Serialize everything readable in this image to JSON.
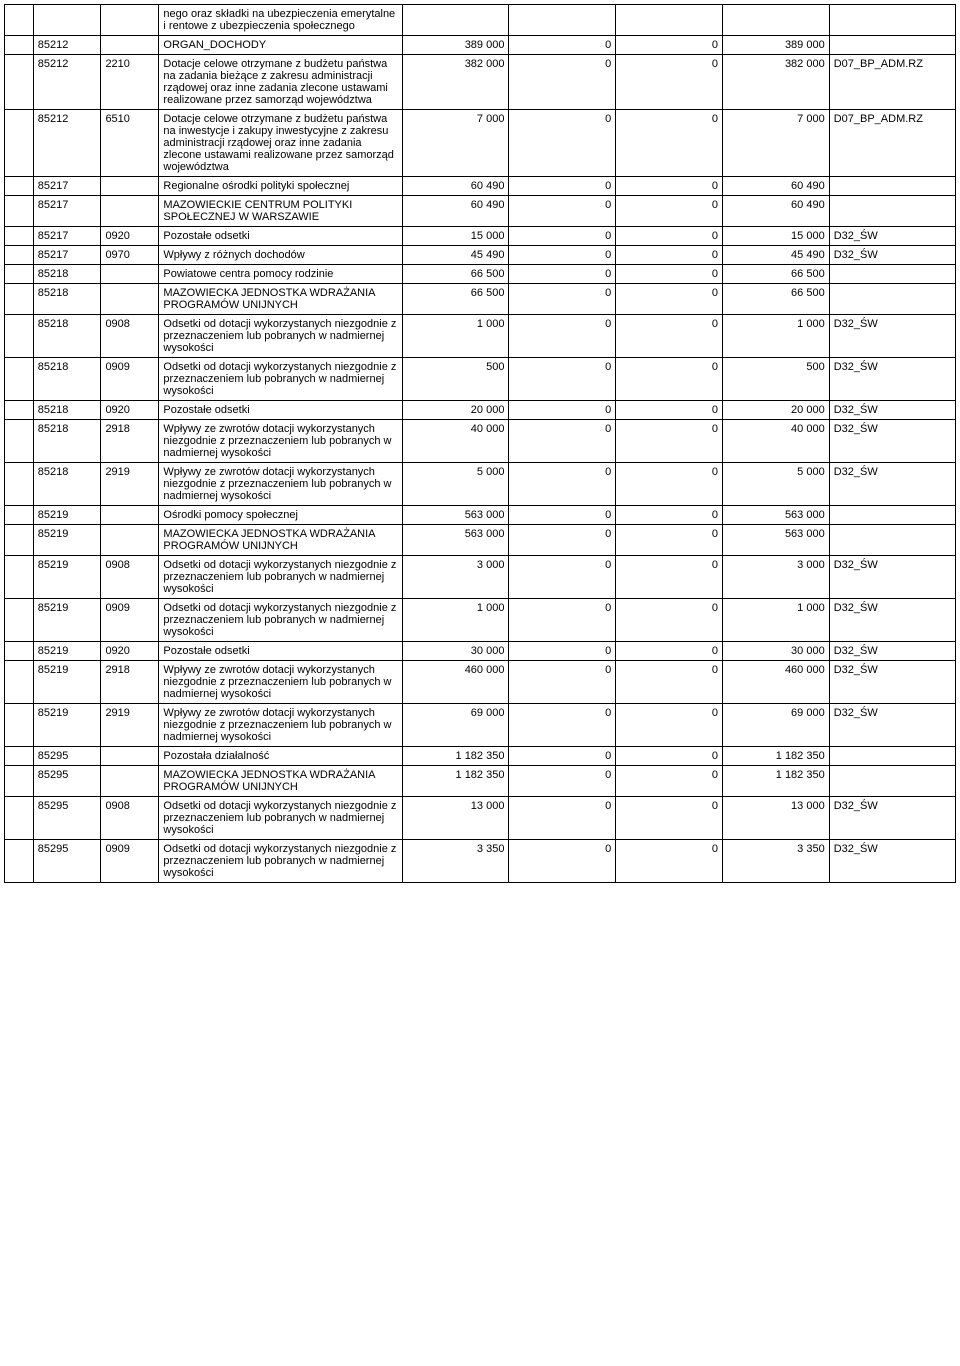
{
  "table": {
    "colClasses": [
      "col0",
      "col1",
      "col2",
      "col3",
      "col4",
      "col5",
      "col6",
      "col7",
      "col8"
    ],
    "rows": [
      [
        "",
        "",
        "",
        "nego oraz składki na ubezpieczenia emerytalne i rentowe z ubezpieczenia społecznego",
        "",
        "",
        "",
        "",
        ""
      ],
      [
        "",
        "85212",
        "",
        "ORGAN_DOCHODY",
        "389 000",
        "0",
        "0",
        "389 000",
        ""
      ],
      [
        "",
        "85212",
        "2210",
        "Dotacje celowe otrzymane z budżetu państwa na zadania bieżące z zakresu administracji rządowej oraz inne zadania zlecone ustawami realizowane przez samorząd województwa",
        "382 000",
        "0",
        "0",
        "382 000",
        "D07_BP_ADM.RZ"
      ],
      [
        "",
        "85212",
        "6510",
        "Dotacje celowe otrzymane z budżetu państwa na inwestycje i zakupy inwestycyjne z zakresu administracji rządowej oraz inne zadania zlecone ustawami realizowane przez samorząd województwa",
        "7 000",
        "0",
        "0",
        "7 000",
        "D07_BP_ADM.RZ"
      ],
      [
        "",
        "85217",
        "",
        "Regionalne ośrodki polityki społecznej",
        "60 490",
        "0",
        "0",
        "60 490",
        ""
      ],
      [
        "",
        "85217",
        "",
        "MAZOWIECKIE CENTRUM POLITYKI SPOŁECZNEJ W WARSZAWIE",
        "60 490",
        "0",
        "0",
        "60 490",
        ""
      ],
      [
        "",
        "85217",
        "0920",
        "Pozostałe odsetki",
        "15 000",
        "0",
        "0",
        "15 000",
        "D32_ŚW"
      ],
      [
        "",
        "85217",
        "0970",
        "Wpływy z różnych dochodów",
        "45 490",
        "0",
        "0",
        "45 490",
        "D32_ŚW"
      ],
      [
        "",
        "85218",
        "",
        "Powiatowe centra pomocy rodzinie",
        "66 500",
        "0",
        "0",
        "66 500",
        ""
      ],
      [
        "",
        "85218",
        "",
        "MAZOWIECKA JEDNOSTKA WDRAŻANIA PROGRAMÓW UNIJNYCH",
        "66 500",
        "0",
        "0",
        "66 500",
        ""
      ],
      [
        "",
        "85218",
        "0908",
        "Odsetki od dotacji wykorzystanych niezgodnie z przeznaczeniem lub pobranych w nadmiernej wysokości",
        "1 000",
        "0",
        "0",
        "1 000",
        "D32_ŚW"
      ],
      [
        "",
        "85218",
        "0909",
        "Odsetki od dotacji wykorzystanych niezgodnie z przeznaczeniem lub pobranych w nadmiernej wysokości",
        "500",
        "0",
        "0",
        "500",
        "D32_ŚW"
      ],
      [
        "",
        "85218",
        "0920",
        "Pozostałe odsetki",
        "20 000",
        "0",
        "0",
        "20 000",
        "D32_ŚW"
      ],
      [
        "",
        "85218",
        "2918",
        "Wpływy ze zwrotów dotacji wykorzystanych niezgodnie z przeznaczeniem lub pobranych w nadmiernej wysokości",
        "40 000",
        "0",
        "0",
        "40 000",
        "D32_ŚW"
      ],
      [
        "",
        "85218",
        "2919",
        "Wpływy ze zwrotów dotacji wykorzystanych niezgodnie z przeznaczeniem lub pobranych w nadmiernej wysokości",
        "5 000",
        "0",
        "0",
        "5 000",
        "D32_ŚW"
      ],
      [
        "",
        "85219",
        "",
        "Ośrodki pomocy społecznej",
        "563 000",
        "0",
        "0",
        "563 000",
        ""
      ],
      [
        "",
        "85219",
        "",
        "MAZOWIECKA JEDNOSTKA WDRAŻANIA PROGRAMÓW UNIJNYCH",
        "563 000",
        "0",
        "0",
        "563 000",
        ""
      ],
      [
        "",
        "85219",
        "0908",
        "Odsetki od dotacji wykorzystanych niezgodnie z przeznaczeniem lub pobranych w nadmiernej wysokości",
        "3 000",
        "0",
        "0",
        "3 000",
        "D32_ŚW"
      ],
      [
        "",
        "85219",
        "0909",
        "Odsetki od dotacji wykorzystanych niezgodnie z przeznaczeniem lub pobranych w nadmiernej wysokości",
        "1 000",
        "0",
        "0",
        "1 000",
        "D32_ŚW"
      ],
      [
        "",
        "85219",
        "0920",
        "Pozostałe odsetki",
        "30 000",
        "0",
        "0",
        "30 000",
        "D32_ŚW"
      ],
      [
        "",
        "85219",
        "2918",
        "Wpływy ze zwrotów dotacji wykorzystanych niezgodnie z przeznaczeniem lub pobranych w nadmiernej wysokości",
        "460 000",
        "0",
        "0",
        "460 000",
        "D32_ŚW"
      ],
      [
        "",
        "85219",
        "2919",
        "Wpływy ze zwrotów dotacji wykorzystanych niezgodnie z przeznaczeniem lub pobranych w nadmiernej wysokości",
        "69 000",
        "0",
        "0",
        "69 000",
        "D32_ŚW"
      ],
      [
        "",
        "85295",
        "",
        "Pozostała działalność",
        "1 182 350",
        "0",
        "0",
        "1 182 350",
        ""
      ],
      [
        "",
        "85295",
        "",
        "MAZOWIECKA JEDNOSTKA WDRAŻANIA PROGRAMÓW UNIJNYCH",
        "1 182 350",
        "0",
        "0",
        "1 182 350",
        ""
      ],
      [
        "",
        "85295",
        "0908",
        "Odsetki od dotacji wykorzystanych niezgodnie z przeznaczeniem lub pobranych w nadmiernej wysokości",
        "13 000",
        "0",
        "0",
        "13 000",
        "D32_ŚW"
      ],
      [
        "",
        "85295",
        "0909",
        "Odsetki od dotacji wykorzystanych niezgodnie z przeznaczeniem lub pobranych w nadmiernej wysokości",
        "3 350",
        "0",
        "0",
        "3 350",
        "D32_ŚW"
      ]
    ]
  }
}
